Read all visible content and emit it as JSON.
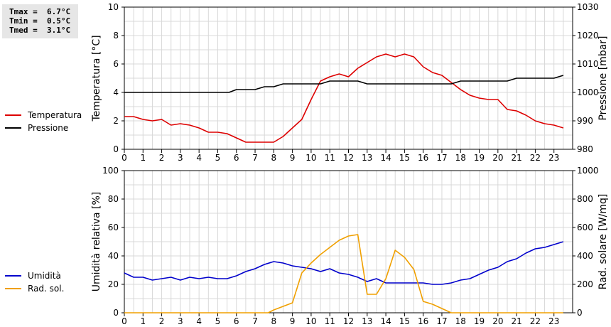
{
  "stats": {
    "tmax": "Tmax =  6.7°C",
    "tmin": "Tmin =  0.5°C",
    "tmed": "Tmed =  3.1°C"
  },
  "chart_data": [
    {
      "type": "line",
      "ylabel": "Temperatura [°C]",
      "y2label": "Pressione [mbar]",
      "ylim": [
        0,
        10
      ],
      "y2lim": [
        980,
        1030
      ],
      "yticks": [
        "0",
        "2",
        "4",
        "6",
        "8",
        "10"
      ],
      "y2ticks": [
        "980",
        "990",
        "1000",
        "1010",
        "1020",
        "1030"
      ],
      "xticks": [
        "0",
        "1",
        "2",
        "3",
        "4",
        "5",
        "6",
        "7",
        "8",
        "9",
        "10",
        "11",
        "12",
        "13",
        "14",
        "15",
        "16",
        "17",
        "18",
        "19",
        "20",
        "21",
        "22",
        "23"
      ],
      "grid": true,
      "legend_placement": "left",
      "series": [
        {
          "name": "Temperatura",
          "color": "#dd0000",
          "axis": "left",
          "x": [
            0,
            0.5,
            1,
            1.5,
            2,
            2.5,
            3,
            3.5,
            4,
            4.5,
            5,
            5.5,
            6,
            6.5,
            7,
            7.5,
            8,
            8.5,
            9,
            9.5,
            10,
            10.5,
            11,
            11.5,
            12,
            12.5,
            13,
            13.5,
            14,
            14.5,
            15,
            15.5,
            16,
            16.5,
            17,
            17.5,
            18,
            18.5,
            19,
            19.5,
            20,
            20.5,
            21,
            21.5,
            22,
            22.5,
            23,
            23.5
          ],
          "values": [
            2.3,
            2.3,
            2.1,
            2.0,
            2.1,
            1.7,
            1.8,
            1.7,
            1.5,
            1.2,
            1.2,
            1.1,
            0.8,
            0.5,
            0.5,
            0.5,
            0.5,
            0.9,
            1.5,
            2.1,
            3.5,
            4.8,
            5.1,
            5.3,
            5.1,
            5.7,
            6.1,
            6.5,
            6.7,
            6.5,
            6.7,
            6.5,
            5.8,
            5.4,
            5.2,
            4.7,
            4.2,
            3.8,
            3.6,
            3.5,
            3.5,
            2.8,
            2.7,
            2.4,
            2.0,
            1.8,
            1.7,
            1.5
          ]
        },
        {
          "name": "Pressione",
          "color": "#000000",
          "axis": "right",
          "x": [
            0,
            1,
            2,
            3,
            4,
            5,
            5.6,
            6,
            7,
            7.5,
            8,
            8.5,
            9,
            10,
            10.5,
            11,
            12,
            12.5,
            13,
            14,
            15,
            16,
            17,
            17.5,
            18,
            19,
            20,
            20.5,
            21,
            22,
            23,
            23.5
          ],
          "values": [
            1000,
            1000,
            1000,
            1000,
            1000,
            1000,
            1000,
            1001,
            1001,
            1002,
            1002,
            1003,
            1003,
            1003,
            1003,
            1004,
            1004,
            1004,
            1003,
            1003,
            1003,
            1003,
            1003,
            1003,
            1004,
            1004,
            1004,
            1004,
            1005,
            1005,
            1005,
            1006
          ]
        }
      ]
    },
    {
      "type": "line",
      "ylabel": "Umidità relativa [%]",
      "y2label": "Rad. solare [W/mq]",
      "ylim": [
        0,
        100
      ],
      "y2lim": [
        0,
        1000
      ],
      "yticks": [
        "0",
        "20",
        "40",
        "60",
        "80",
        "100"
      ],
      "y2ticks": [
        "0",
        "200",
        "400",
        "600",
        "800",
        "1000"
      ],
      "xticks": [
        "0",
        "1",
        "2",
        "3",
        "4",
        "5",
        "6",
        "7",
        "8",
        "9",
        "10",
        "11",
        "12",
        "13",
        "14",
        "15",
        "16",
        "17",
        "18",
        "19",
        "20",
        "21",
        "22",
        "23"
      ],
      "grid": true,
      "legend_placement": "left",
      "series": [
        {
          "name": "Umidità",
          "color": "#0000cc",
          "axis": "left",
          "x": [
            0,
            0.5,
            1,
            1.5,
            2,
            2.5,
            3,
            3.5,
            4,
            4.5,
            5,
            5.5,
            6,
            6.5,
            7,
            7.5,
            8,
            8.5,
            9,
            9.5,
            10,
            10.5,
            11,
            11.5,
            12,
            12.5,
            13,
            13.5,
            14,
            14.5,
            15,
            15.5,
            16,
            16.5,
            17,
            17.5,
            18,
            18.5,
            19,
            19.5,
            20,
            20.5,
            21,
            21.5,
            22,
            22.5,
            23,
            23.5
          ],
          "values": [
            28,
            25,
            25,
            23,
            24,
            25,
            23,
            25,
            24,
            25,
            24,
            24,
            26,
            29,
            31,
            34,
            36,
            35,
            33,
            32,
            31,
            29,
            31,
            28,
            27,
            25,
            22,
            24,
            21,
            21,
            21,
            21,
            21,
            20,
            20,
            21,
            23,
            24,
            27,
            30,
            32,
            36,
            38,
            42,
            45,
            46,
            48,
            50
          ]
        },
        {
          "name": "Rad. sol.",
          "color": "#f0a000",
          "axis": "right",
          "x": [
            0,
            1,
            2,
            3,
            4,
            5,
            6,
            7,
            7.7,
            8,
            8.5,
            9,
            9.5,
            10,
            10.5,
            11,
            11.5,
            12,
            12.5,
            13,
            13.5,
            14,
            14.5,
            15,
            15.5,
            16,
            16.5,
            17,
            17.5,
            18,
            19,
            20,
            21,
            22,
            23,
            23.5
          ],
          "values": [
            0,
            0,
            0,
            0,
            0,
            0,
            0,
            0,
            0,
            20,
            45,
            70,
            280,
            350,
            410,
            460,
            510,
            540,
            550,
            130,
            130,
            240,
            440,
            390,
            305,
            80,
            60,
            30,
            0,
            0,
            0,
            0,
            0,
            0,
            0,
            0
          ]
        }
      ]
    }
  ]
}
